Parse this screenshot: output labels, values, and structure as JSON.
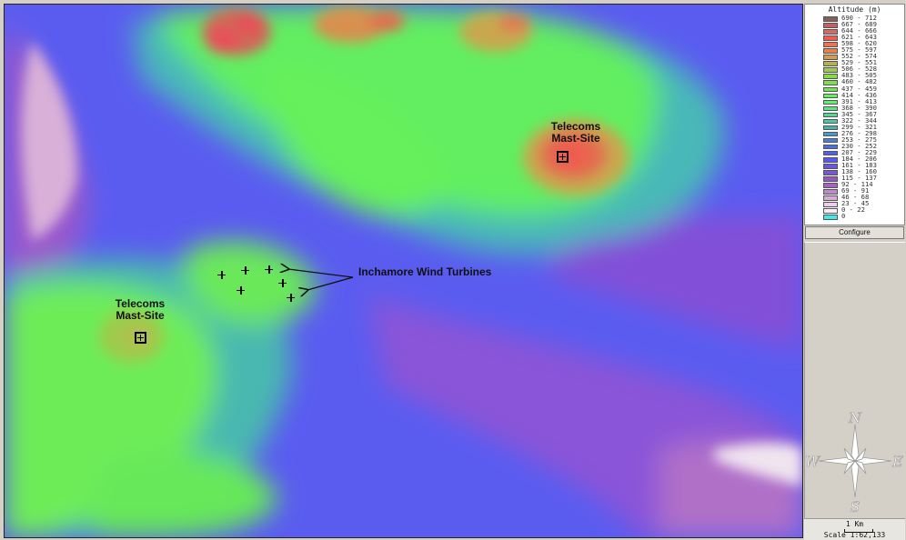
{
  "legend": {
    "title": "Altitude (m)",
    "configure_label": "Configure",
    "bands": [
      {
        "range": "690 - 712",
        "color": "#8a5c5c"
      },
      {
        "range": "667 - 689",
        "color": "#c06060"
      },
      {
        "range": "644 - 666",
        "color": "#d86868"
      },
      {
        "range": "621 - 643",
        "color": "#ee5a52"
      },
      {
        "range": "598 - 620",
        "color": "#f47050"
      },
      {
        "range": "575 - 597",
        "color": "#e8804c"
      },
      {
        "range": "552 - 574",
        "color": "#d89a50"
      },
      {
        "range": "529 - 551",
        "color": "#b8b050"
      },
      {
        "range": "506 - 528",
        "color": "#9ccc4c"
      },
      {
        "range": "483 - 505",
        "color": "#88d84c"
      },
      {
        "range": "460 - 482",
        "color": "#7ae04e"
      },
      {
        "range": "437 - 459",
        "color": "#70e852"
      },
      {
        "range": "414 - 436",
        "color": "#66f05c"
      },
      {
        "range": "391 - 413",
        "color": "#5ef06c"
      },
      {
        "range": "368 - 390",
        "color": "#58e880"
      },
      {
        "range": "345 - 367",
        "color": "#52d894"
      },
      {
        "range": "322 - 344",
        "color": "#4cc8a8"
      },
      {
        "range": "299 - 321",
        "color": "#48b0b8"
      },
      {
        "range": "276 - 298",
        "color": "#4898c8"
      },
      {
        "range": "253 - 275",
        "color": "#4a80d8"
      },
      {
        "range": "230 - 252",
        "color": "#4c6ce8"
      },
      {
        "range": "207 - 229",
        "color": "#5060f0"
      },
      {
        "range": "184 - 206",
        "color": "#5a58f0"
      },
      {
        "range": "161 - 183",
        "color": "#6a54e4"
      },
      {
        "range": "138 - 160",
        "color": "#7c54d4"
      },
      {
        "range": "115 - 137",
        "color": "#9058c8"
      },
      {
        "range": "92 - 114",
        "color": "#a264c0"
      },
      {
        "range": "69 - 91",
        "color": "#c088cc"
      },
      {
        "range": "46 - 68",
        "color": "#d8acd8"
      },
      {
        "range": "23 - 45",
        "color": "#ead0ea"
      },
      {
        "range": "0 - 22",
        "color": "#f8f0f8"
      },
      {
        "range": "0",
        "color": "#40e8f0"
      }
    ]
  },
  "labels": {
    "mast_site_1": {
      "line1": "Telecoms",
      "line2": "Mast-Site"
    },
    "mast_site_2": {
      "line1": "Telecoms",
      "line2": "Mast-Site"
    },
    "turbines": "Inchamore Wind Turbines"
  },
  "compass": {
    "n": "N",
    "s": "S",
    "e": "E",
    "w": "W"
  },
  "scale": {
    "bar_label": "1 Km",
    "ratio": "Scale 1:62,133"
  }
}
